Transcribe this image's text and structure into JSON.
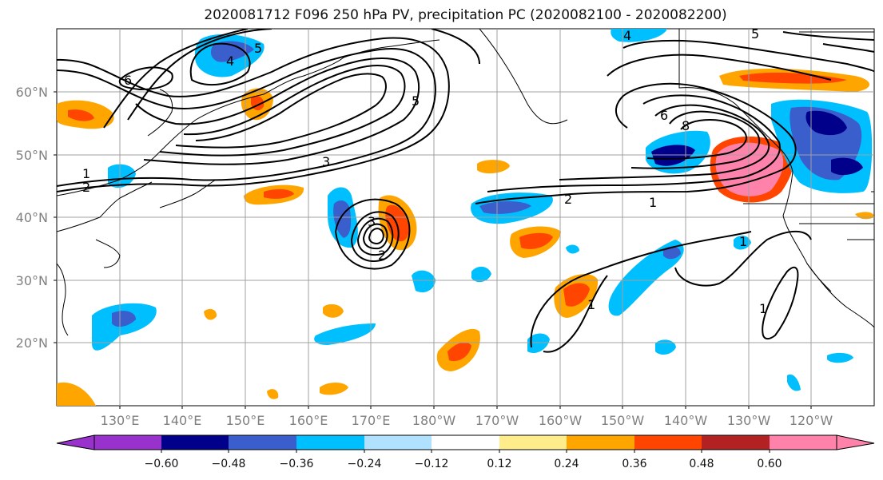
{
  "title": "2020081712 F096 250 hPa PV, precipitation PC (2020082100 - 2020082200)",
  "map": {
    "lat_labels": [
      "60°N",
      "50°N",
      "40°N",
      "30°N",
      "20°N"
    ],
    "lon_labels": [
      "130°E",
      "140°E",
      "150°E",
      "160°E",
      "170°E",
      "180°W",
      "170°W",
      "160°W",
      "150°W",
      "140°W",
      "130°W",
      "120°W"
    ],
    "contour_labels": [
      "1",
      "2",
      "3",
      "5",
      "6",
      "5",
      "4",
      "6",
      "8",
      "2",
      "1",
      "1",
      "1",
      "2",
      "3",
      "5",
      "4",
      "1"
    ]
  },
  "colorbar": {
    "colors": [
      "#9932cc",
      "#00008b",
      "#3a5fcd",
      "#00bfff",
      "#b0e2ff",
      "#ffffff",
      "#ffec8b",
      "#ffa500",
      "#ff4500",
      "#b22222",
      "#ff82ab"
    ],
    "tick_labels": [
      "−0.60",
      "−0.48",
      "−0.36",
      "−0.24",
      "−0.12",
      "0.12",
      "0.24",
      "0.36",
      "0.48",
      "0.60"
    ]
  }
}
